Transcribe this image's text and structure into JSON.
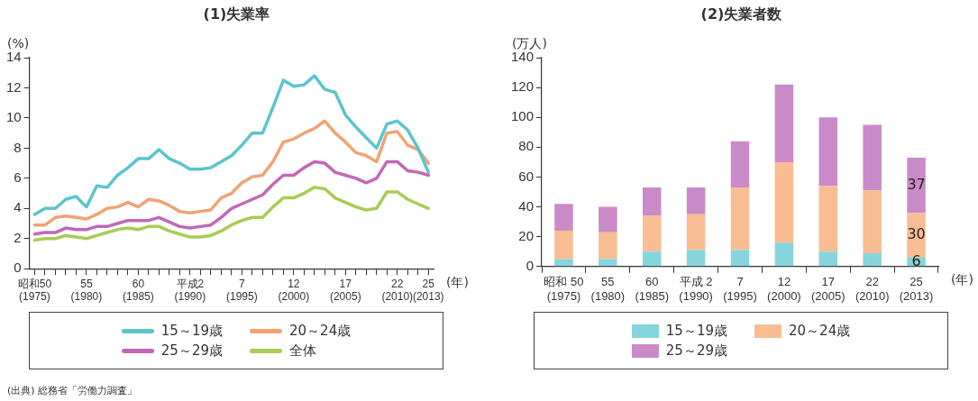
{
  "chart_data": [
    {
      "type": "line",
      "title": "(1)失業率",
      "ylabel": "(%)",
      "xlabel": "(年)",
      "categories": [
        "昭和50\n(1975)",
        null,
        null,
        null,
        null,
        "55\n(1980)",
        null,
        null,
        null,
        null,
        "60\n(1985)",
        null,
        null,
        null,
        null,
        "平成2\n(1990)",
        null,
        null,
        null,
        null,
        "7\n(1995)",
        null,
        null,
        null,
        null,
        "12\n(2000)",
        null,
        null,
        null,
        null,
        "17\n(2005)",
        null,
        null,
        null,
        null,
        "22\n(2010)",
        null,
        null,
        "25\n(2013)"
      ],
      "series": [
        {
          "name": "15～19歳",
          "color": "#5bc4cc",
          "values": [
            3.6,
            4.0,
            4.0,
            4.6,
            4.8,
            4.1,
            5.5,
            5.4,
            6.2,
            6.7,
            7.3,
            7.3,
            7.9,
            7.3,
            7.0,
            6.6,
            6.6,
            6.7,
            7.1,
            7.5,
            8.2,
            9.0,
            9.0,
            10.7,
            12.5,
            12.1,
            12.2,
            12.8,
            11.9,
            11.7,
            10.2,
            9.4,
            8.7,
            8.0,
            9.6,
            9.8,
            9.2,
            8.0,
            6.4
          ]
        },
        {
          "name": "20～24歳",
          "color": "#f0a374",
          "values": [
            2.9,
            2.9,
            3.4,
            3.5,
            3.4,
            3.3,
            3.6,
            4.0,
            4.1,
            4.4,
            4.1,
            4.6,
            4.5,
            4.2,
            3.8,
            3.7,
            3.8,
            3.9,
            4.7,
            5.0,
            5.7,
            6.1,
            6.2,
            7.1,
            8.4,
            8.6,
            9.0,
            9.3,
            9.8,
            9.0,
            8.4,
            7.7,
            7.5,
            7.1,
            9.0,
            9.1,
            8.2,
            7.9,
            7.0
          ]
        },
        {
          "name": "25～29歳",
          "color": "#c068b8",
          "values": [
            2.3,
            2.4,
            2.4,
            2.7,
            2.6,
            2.6,
            2.8,
            2.8,
            3.0,
            3.2,
            3.2,
            3.2,
            3.4,
            3.1,
            2.8,
            2.7,
            2.8,
            2.9,
            3.4,
            4.0,
            4.3,
            4.6,
            4.9,
            5.6,
            6.2,
            6.2,
            6.7,
            7.1,
            7.0,
            6.4,
            6.2,
            6.0,
            5.7,
            6.0,
            7.1,
            7.1,
            6.5,
            6.4,
            6.2
          ]
        },
        {
          "name": "全体",
          "color": "#a9cc55",
          "values": [
            1.9,
            2.0,
            2.0,
            2.2,
            2.1,
            2.0,
            2.2,
            2.4,
            2.6,
            2.7,
            2.6,
            2.8,
            2.8,
            2.5,
            2.3,
            2.1,
            2.1,
            2.2,
            2.5,
            2.9,
            3.2,
            3.4,
            3.4,
            4.1,
            4.7,
            4.7,
            5.0,
            5.4,
            5.3,
            4.7,
            4.4,
            4.1,
            3.9,
            4.0,
            5.1,
            5.1,
            4.6,
            4.3,
            4.0
          ]
        }
      ],
      "ylim": [
        0,
        14
      ],
      "yticks": [
        0,
        2,
        4,
        6,
        8,
        10,
        12,
        14
      ],
      "grid": false,
      "legend": "bottom",
      "marker": "none",
      "annotations": [
        "(出典) 総務省「労働力調査」"
      ]
    },
    {
      "type": "bar",
      "title": "(2)失業者数",
      "ylabel": "(万人)",
      "xlabel": "(年)",
      "stacked": true,
      "categories": [
        "昭和 50\n(1975)",
        "55\n(1980)",
        "60\n(1985)",
        "平成 2\n(1990)",
        "7\n(1995)",
        "12\n(2000)",
        "17\n(2005)",
        "22\n(2010)",
        "25\n(2013)"
      ],
      "series": [
        {
          "name": "15～19歳",
          "color": "#86d4dc",
          "values": [
            5,
            5,
            10,
            11,
            11,
            16,
            10,
            9,
            6
          ],
          "value_labels": [
            null,
            null,
            null,
            null,
            null,
            null,
            null,
            null,
            "6"
          ]
        },
        {
          "name": "20～24歳",
          "color": "#f8bd92",
          "values": [
            19,
            18,
            24,
            24,
            42,
            54,
            44,
            42,
            30
          ],
          "value_labels": [
            null,
            null,
            null,
            null,
            null,
            null,
            null,
            null,
            "30"
          ]
        },
        {
          "name": "25～29歳",
          "color": "#c98bc8",
          "values": [
            18,
            17,
            19,
            18,
            31,
            52,
            46,
            44,
            37
          ],
          "value_labels": [
            null,
            null,
            null,
            null,
            null,
            null,
            null,
            null,
            "37"
          ]
        }
      ],
      "ylim": [
        0,
        140
      ],
      "yticks": [
        0,
        20,
        40,
        60,
        80,
        100,
        120,
        140
      ],
      "grid": false,
      "legend": "bottom"
    }
  ]
}
